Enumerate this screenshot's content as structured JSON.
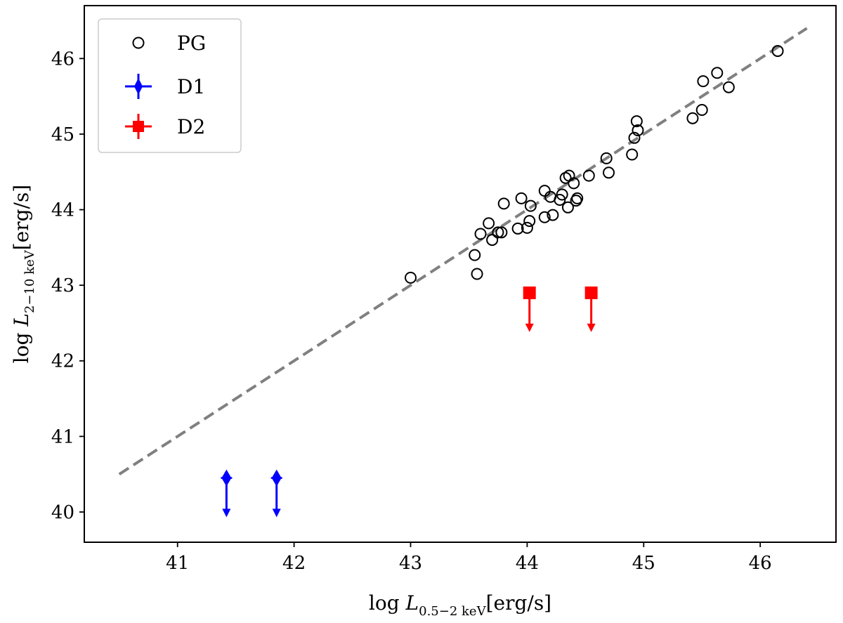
{
  "chart_data": {
    "type": "scatter",
    "xlabel": {
      "prefix": "log ",
      "var": "L",
      "sub": "0.5−2 keV",
      "unit": "[erg/s]"
    },
    "ylabel": {
      "prefix": "log ",
      "var": "L",
      "sub": "2−10 keV",
      "unit": "[erg/s]"
    },
    "xlim": [
      40.2,
      46.65
    ],
    "ylim": [
      39.6,
      46.7
    ],
    "xticks": [
      41,
      42,
      43,
      44,
      45,
      46
    ],
    "yticks": [
      40,
      41,
      42,
      43,
      44,
      45,
      46
    ],
    "legend": {
      "position": "top-left",
      "entries": [
        "PG",
        "D1",
        "D2"
      ]
    },
    "colors": {
      "PG": "#000000",
      "D1": "#0000ff",
      "D2": "#ff0000",
      "fit": "#808080"
    },
    "fit_line": {
      "x": [
        40.5,
        46.4
      ],
      "y": [
        40.5,
        46.4
      ],
      "style": "dashed"
    },
    "series": [
      {
        "name": "PG",
        "marker": "open-circle",
        "points": [
          [
            43.0,
            43.1
          ],
          [
            43.55,
            43.4
          ],
          [
            43.57,
            43.15
          ],
          [
            43.6,
            43.68
          ],
          [
            43.67,
            43.82
          ],
          [
            43.7,
            43.6
          ],
          [
            43.75,
            43.7
          ],
          [
            43.78,
            43.7
          ],
          [
            43.8,
            44.08
          ],
          [
            43.92,
            43.75
          ],
          [
            43.95,
            44.15
          ],
          [
            44.0,
            43.76
          ],
          [
            44.02,
            43.85
          ],
          [
            44.03,
            44.05
          ],
          [
            44.15,
            44.25
          ],
          [
            44.15,
            43.9
          ],
          [
            44.2,
            44.17
          ],
          [
            44.22,
            43.93
          ],
          [
            44.28,
            44.13
          ],
          [
            44.3,
            44.2
          ],
          [
            44.33,
            44.42
          ],
          [
            44.35,
            44.03
          ],
          [
            44.36,
            44.45
          ],
          [
            44.4,
            44.35
          ],
          [
            44.42,
            44.12
          ],
          [
            44.43,
            44.15
          ],
          [
            44.53,
            44.45
          ],
          [
            44.68,
            44.68
          ],
          [
            44.7,
            44.49
          ],
          [
            44.9,
            44.73
          ],
          [
            44.92,
            44.95
          ],
          [
            44.94,
            45.17
          ],
          [
            44.95,
            45.05
          ],
          [
            45.42,
            45.21
          ],
          [
            45.5,
            45.32
          ],
          [
            45.51,
            45.7
          ],
          [
            45.63,
            45.81
          ],
          [
            45.73,
            45.62
          ],
          [
            46.15,
            46.1
          ]
        ]
      },
      {
        "name": "D1",
        "marker": "filled-diamond",
        "upper_limit": true,
        "points": [
          [
            41.42,
            40.45
          ],
          [
            41.85,
            40.45
          ]
        ]
      },
      {
        "name": "D2",
        "marker": "filled-square",
        "upper_limit": true,
        "points": [
          [
            44.02,
            42.9
          ],
          [
            44.55,
            42.9
          ]
        ]
      }
    ]
  }
}
